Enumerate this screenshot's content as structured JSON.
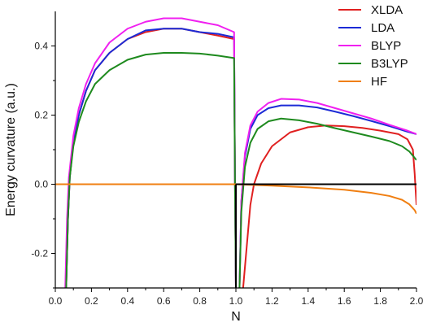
{
  "chart_data": {
    "type": "line",
    "title": "",
    "xlabel": "N",
    "ylabel": "Energy curvature (a.u.)",
    "xlim": [
      0.0,
      2.0
    ],
    "ylim": [
      -0.3,
      0.5
    ],
    "x_ticks": [
      "0.0",
      "0.2",
      "0.4",
      "0.6",
      "0.8",
      "1.0",
      "1.2",
      "1.4",
      "1.6",
      "1.8",
      "2.0"
    ],
    "y_ticks": [
      "-0.2",
      "0.0",
      "0.2",
      "0.4"
    ],
    "legend_placement": "top-right",
    "grid": false,
    "series": [
      {
        "name": "XLDA",
        "color": "#e02020",
        "segments": [
          [
            [
              0.06,
              -0.3
            ],
            [
              0.07,
              -0.1
            ],
            [
              0.08,
              0.02
            ],
            [
              0.1,
              0.12
            ],
            [
              0.13,
              0.2
            ],
            [
              0.17,
              0.27
            ],
            [
              0.22,
              0.33
            ],
            [
              0.3,
              0.38
            ],
            [
              0.4,
              0.42
            ],
            [
              0.5,
              0.44
            ],
            [
              0.6,
              0.45
            ],
            [
              0.7,
              0.45
            ],
            [
              0.8,
              0.44
            ],
            [
              0.9,
              0.43
            ],
            [
              0.99,
              0.42
            ],
            [
              0.995,
              0.0
            ],
            [
              1.0,
              -0.3
            ]
          ],
          [
            [
              1.04,
              -0.3
            ],
            [
              1.06,
              -0.18
            ],
            [
              1.08,
              -0.06
            ],
            [
              1.1,
              0.0
            ],
            [
              1.14,
              0.06
            ],
            [
              1.2,
              0.11
            ],
            [
              1.3,
              0.15
            ],
            [
              1.4,
              0.165
            ],
            [
              1.5,
              0.17
            ],
            [
              1.6,
              0.168
            ],
            [
              1.7,
              0.163
            ],
            [
              1.8,
              0.155
            ],
            [
              1.9,
              0.145
            ],
            [
              1.95,
              0.13
            ],
            [
              1.98,
              0.1
            ],
            [
              1.99,
              0.03
            ],
            [
              2.0,
              -0.06
            ]
          ]
        ]
      },
      {
        "name": "LDA",
        "color": "#1c2bd6",
        "segments": [
          [
            [
              0.06,
              -0.3
            ],
            [
              0.07,
              -0.1
            ],
            [
              0.08,
              0.02
            ],
            [
              0.1,
              0.12
            ],
            [
              0.13,
              0.2
            ],
            [
              0.17,
              0.27
            ],
            [
              0.22,
              0.33
            ],
            [
              0.3,
              0.38
            ],
            [
              0.4,
              0.42
            ],
            [
              0.5,
              0.445
            ],
            [
              0.6,
              0.45
            ],
            [
              0.7,
              0.45
            ],
            [
              0.8,
              0.44
            ],
            [
              0.9,
              0.435
            ],
            [
              0.99,
              0.425
            ],
            [
              0.995,
              0.0
            ],
            [
              1.0,
              -0.3
            ]
          ],
          [
            [
              1.02,
              -0.3
            ],
            [
              1.03,
              -0.05
            ],
            [
              1.05,
              0.08
            ],
            [
              1.08,
              0.16
            ],
            [
              1.12,
              0.2
            ],
            [
              1.18,
              0.22
            ],
            [
              1.25,
              0.228
            ],
            [
              1.35,
              0.228
            ],
            [
              1.45,
              0.222
            ],
            [
              1.55,
              0.21
            ],
            [
              1.65,
              0.197
            ],
            [
              1.75,
              0.183
            ],
            [
              1.85,
              0.168
            ],
            [
              1.95,
              0.152
            ],
            [
              2.0,
              0.145
            ]
          ]
        ]
      },
      {
        "name": "BLYP",
        "color": "#f020f0",
        "segments": [
          [
            [
              0.055,
              -0.3
            ],
            [
              0.065,
              -0.1
            ],
            [
              0.075,
              0.02
            ],
            [
              0.1,
              0.14
            ],
            [
              0.13,
              0.22
            ],
            [
              0.17,
              0.29
            ],
            [
              0.22,
              0.35
            ],
            [
              0.3,
              0.41
            ],
            [
              0.4,
              0.45
            ],
            [
              0.5,
              0.47
            ],
            [
              0.6,
              0.48
            ],
            [
              0.7,
              0.48
            ],
            [
              0.8,
              0.47
            ],
            [
              0.9,
              0.46
            ],
            [
              0.99,
              0.44
            ],
            [
              0.995,
              0.0
            ],
            [
              1.0,
              -0.3
            ]
          ],
          [
            [
              1.02,
              -0.3
            ],
            [
              1.03,
              -0.05
            ],
            [
              1.05,
              0.09
            ],
            [
              1.08,
              0.17
            ],
            [
              1.12,
              0.21
            ],
            [
              1.18,
              0.235
            ],
            [
              1.25,
              0.247
            ],
            [
              1.35,
              0.245
            ],
            [
              1.45,
              0.235
            ],
            [
              1.55,
              0.22
            ],
            [
              1.65,
              0.205
            ],
            [
              1.75,
              0.19
            ],
            [
              1.85,
              0.172
            ],
            [
              1.95,
              0.155
            ],
            [
              2.0,
              0.145
            ]
          ]
        ]
      },
      {
        "name": "B3LYP",
        "color": "#1e8a1e",
        "segments": [
          [
            [
              0.06,
              -0.3
            ],
            [
              0.07,
              -0.1
            ],
            [
              0.08,
              0.02
            ],
            [
              0.1,
              0.11
            ],
            [
              0.13,
              0.18
            ],
            [
              0.17,
              0.24
            ],
            [
              0.22,
              0.29
            ],
            [
              0.3,
              0.33
            ],
            [
              0.4,
              0.36
            ],
            [
              0.5,
              0.375
            ],
            [
              0.6,
              0.38
            ],
            [
              0.7,
              0.38
            ],
            [
              0.8,
              0.378
            ],
            [
              0.9,
              0.372
            ],
            [
              0.99,
              0.365
            ],
            [
              0.995,
              0.0
            ],
            [
              1.0,
              -0.3
            ]
          ],
          [
            [
              1.02,
              -0.3
            ],
            [
              1.03,
              -0.08
            ],
            [
              1.05,
              0.05
            ],
            [
              1.08,
              0.12
            ],
            [
              1.12,
              0.16
            ],
            [
              1.18,
              0.182
            ],
            [
              1.25,
              0.19
            ],
            [
              1.35,
              0.185
            ],
            [
              1.45,
              0.175
            ],
            [
              1.55,
              0.162
            ],
            [
              1.65,
              0.15
            ],
            [
              1.75,
              0.138
            ],
            [
              1.85,
              0.125
            ],
            [
              1.92,
              0.11
            ],
            [
              1.96,
              0.095
            ],
            [
              2.0,
              0.07
            ]
          ]
        ]
      },
      {
        "name": "HF",
        "color": "#f07f12",
        "segments": [
          [
            [
              0.0,
              0.0
            ],
            [
              0.5,
              0.0
            ],
            [
              1.0,
              0.0
            ],
            [
              1.1,
              -0.002
            ],
            [
              1.2,
              -0.004
            ],
            [
              1.4,
              -0.009
            ],
            [
              1.6,
              -0.016
            ],
            [
              1.75,
              -0.025
            ],
            [
              1.85,
              -0.034
            ],
            [
              1.92,
              -0.045
            ],
            [
              1.96,
              -0.058
            ],
            [
              1.99,
              -0.075
            ],
            [
              2.0,
              -0.085
            ]
          ]
        ]
      },
      {
        "name": "",
        "color": "#000000",
        "legend": false,
        "segments": [
          [
            [
              1.0,
              0.0
            ],
            [
              2.0,
              0.0
            ]
          ],
          [
            [
              1.0,
              0.0
            ],
            [
              1.0,
              -0.3
            ]
          ]
        ]
      }
    ]
  }
}
